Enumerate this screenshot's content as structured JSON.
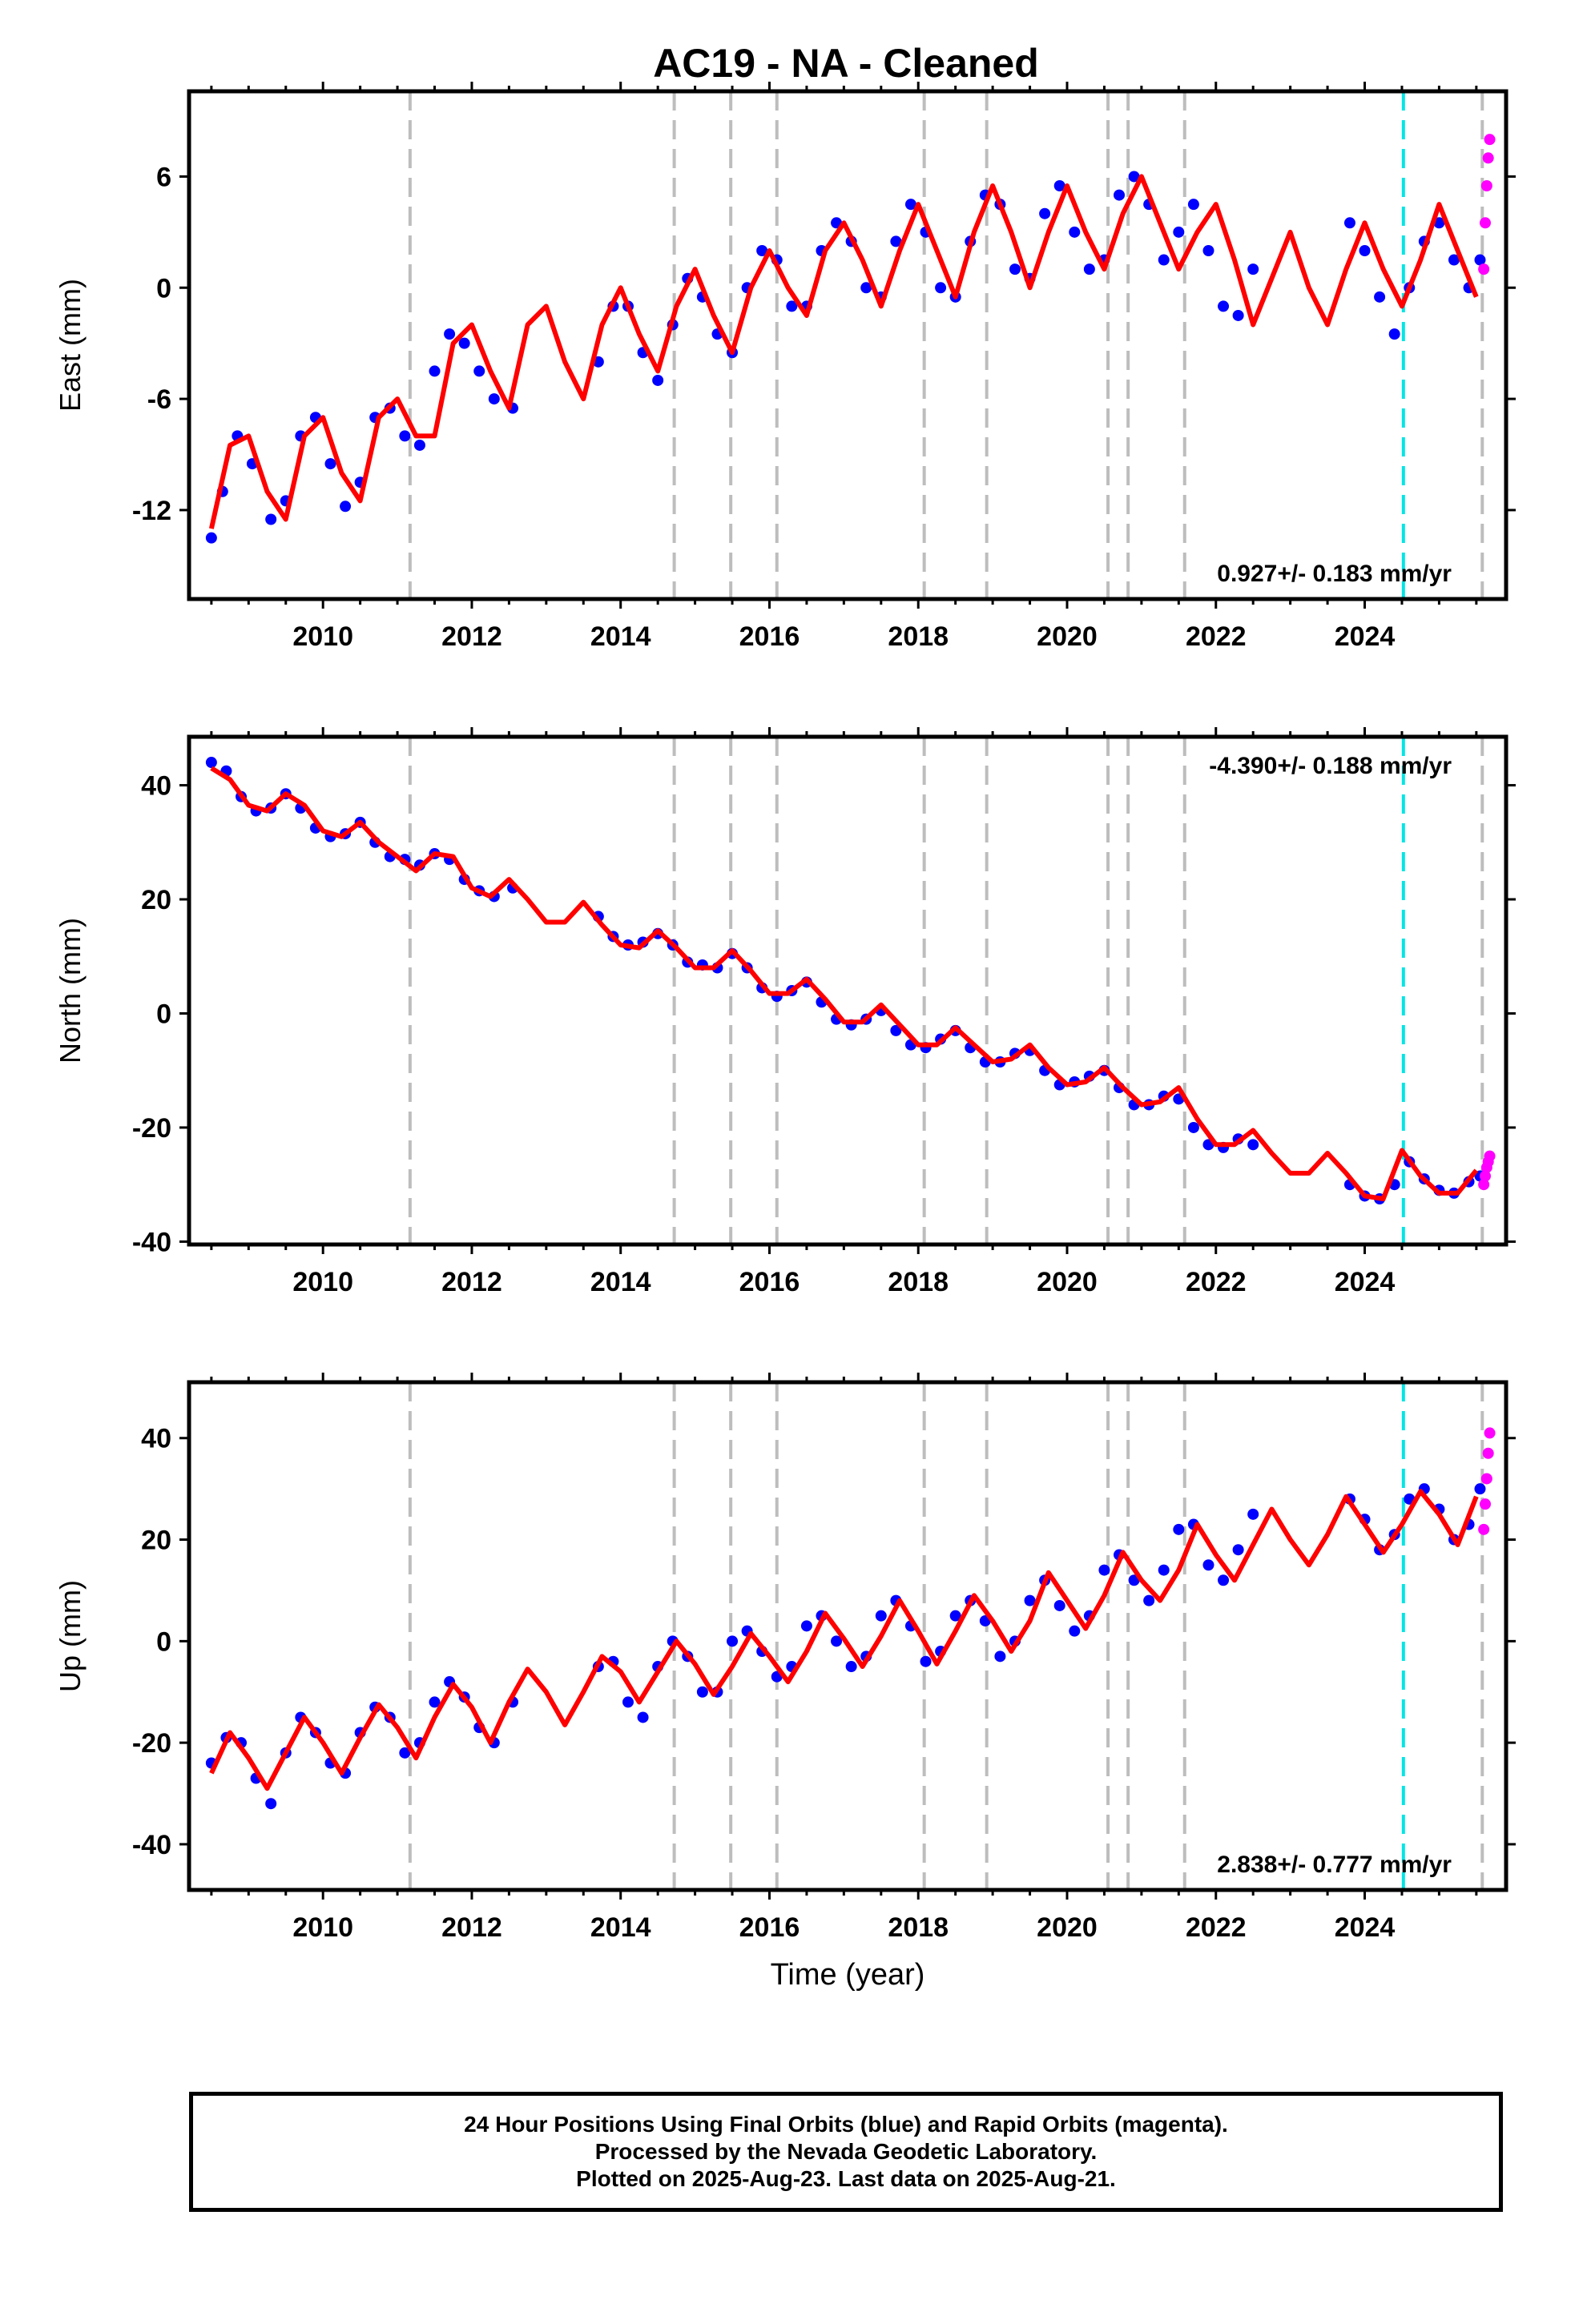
{
  "title": "AC19  - NA - Cleaned",
  "chart_data": [
    {
      "type": "scatter",
      "ylabel": "East (mm)",
      "xlabel": "",
      "xlim": [
        2008.2,
        2025.9
      ],
      "ylim": [
        -16.8,
        10.6
      ],
      "xticks": [
        2010,
        2012,
        2014,
        2016,
        2018,
        2020,
        2022,
        2024
      ],
      "yticks": [
        -12,
        -6,
        0,
        6
      ],
      "rate_label": "0.927+/- 0.183 mm/yr",
      "series": [
        {
          "color": "#0000ff",
          "x": [
            2008.5,
            2008.65,
            2008.85,
            2009.05,
            2009.3,
            2009.5,
            2009.7,
            2009.9,
            2010.1,
            2010.3,
            2010.5,
            2010.7,
            2010.9,
            2011.1,
            2011.3,
            2011.5,
            2011.7,
            2011.9,
            2012.1,
            2012.3,
            2012.55,
            2013.7,
            2013.9,
            2014.1,
            2014.3,
            2014.5,
            2014.7,
            2014.9,
            2015.1,
            2015.3,
            2015.5,
            2015.7,
            2015.9,
            2016.1,
            2016.3,
            2016.5,
            2016.7,
            2016.9,
            2017.1,
            2017.3,
            2017.5,
            2017.7,
            2017.9,
            2018.1,
            2018.3,
            2018.5,
            2018.7,
            2018.9,
            2019.1,
            2019.3,
            2019.5,
            2019.7,
            2019.9,
            2020.1,
            2020.3,
            2020.5,
            2020.7,
            2020.9,
            2021.1,
            2021.3,
            2021.5,
            2021.7,
            2021.9,
            2022.1,
            2022.3,
            2022.5,
            2023.8,
            2024.0,
            2024.2,
            2024.4,
            2024.6,
            2024.8,
            2025.0,
            2025.2,
            2025.4,
            2025.55
          ],
          "y": [
            -13.5,
            -11.0,
            -8.0,
            -9.5,
            -12.5,
            -11.5,
            -8.0,
            -7.0,
            -9.5,
            -11.8,
            -10.5,
            -7.0,
            -6.5,
            -8.0,
            -8.5,
            -4.5,
            -2.5,
            -3.0,
            -4.5,
            -6.0,
            -6.5,
            -4.0,
            -1.0,
            -1.0,
            -3.5,
            -5.0,
            -2.0,
            0.5,
            -0.5,
            -2.5,
            -3.5,
            0.0,
            2.0,
            1.5,
            -1.0,
            -1.0,
            2.0,
            3.5,
            2.5,
            0.0,
            -0.5,
            2.5,
            4.5,
            3.0,
            0.0,
            -0.5,
            2.5,
            5.0,
            4.5,
            1.0,
            0.5,
            4.0,
            5.5,
            3.0,
            1.0,
            1.5,
            5.0,
            6.0,
            4.5,
            1.5,
            3.0,
            4.5,
            2.0,
            -1.0,
            -1.5,
            1.0,
            3.5,
            2.0,
            -0.5,
            -2.5,
            0.0,
            2.5,
            3.5,
            1.5,
            0.0,
            1.5
          ]
        },
        {
          "color": "#ff00ff",
          "x": [
            2025.6,
            2025.62,
            2025.64,
            2025.66,
            2025.68
          ],
          "y": [
            1.0,
            3.5,
            5.5,
            7.0,
            8.0
          ]
        }
      ],
      "model": {
        "color": "#ff0000",
        "x": [
          2008.5,
          2008.75,
          2009.0,
          2009.25,
          2009.5,
          2009.75,
          2010.0,
          2010.25,
          2010.5,
          2010.75,
          2011.0,
          2011.25,
          2011.5,
          2011.75,
          2012.0,
          2012.25,
          2012.5,
          2012.75,
          2013.0,
          2013.25,
          2013.5,
          2013.75,
          2014.0,
          2014.25,
          2014.5,
          2014.75,
          2015.0,
          2015.25,
          2015.5,
          2015.75,
          2016.0,
          2016.25,
          2016.5,
          2016.75,
          2017.0,
          2017.25,
          2017.5,
          2017.75,
          2018.0,
          2018.25,
          2018.5,
          2018.75,
          2019.0,
          2019.25,
          2019.5,
          2019.75,
          2020.0,
          2020.25,
          2020.5,
          2020.75,
          2021.0,
          2021.25,
          2021.5,
          2021.75,
          2022.0,
          2022.25,
          2022.5,
          2022.75,
          2023.0,
          2023.25,
          2023.5,
          2023.75,
          2024.0,
          2024.25,
          2024.5,
          2024.75,
          2025.0,
          2025.25,
          2025.5
        ],
        "y": [
          -13.0,
          -8.5,
          -8.0,
          -11.0,
          -12.5,
          -8.0,
          -7.0,
          -10.0,
          -11.5,
          -7.0,
          -6.0,
          -8.0,
          -8.0,
          -3.0,
          -2.0,
          -4.5,
          -6.5,
          -2.0,
          -1.0,
          -4.0,
          -6.0,
          -2.0,
          0.0,
          -2.5,
          -4.5,
          -1.0,
          1.0,
          -1.5,
          -3.5,
          0.0,
          2.0,
          0.0,
          -1.5,
          2.0,
          3.5,
          1.5,
          -1.0,
          2.0,
          4.5,
          2.0,
          -0.5,
          3.0,
          5.5,
          3.0,
          0.0,
          3.0,
          5.5,
          3.0,
          1.0,
          4.0,
          6.0,
          3.5,
          1.0,
          3.0,
          4.5,
          1.5,
          -2.0,
          0.5,
          3.0,
          0.0,
          -2.0,
          1.0,
          3.5,
          1.0,
          -1.0,
          1.5,
          4.5,
          2.0,
          -0.5
        ]
      },
      "grey_lines": [
        2011.17,
        2014.72,
        2015.48,
        2016.1,
        2018.08,
        2018.92,
        2020.55,
        2020.82,
        2021.58,
        2025.58
      ],
      "cyan_lines": [
        2024.52
      ]
    },
    {
      "type": "scatter",
      "ylabel": "North (mm)",
      "xlabel": "",
      "xlim": [
        2008.2,
        2025.9
      ],
      "ylim": [
        -40.5,
        48.5
      ],
      "xticks": [
        2010,
        2012,
        2014,
        2016,
        2018,
        2020,
        2022,
        2024
      ],
      "yticks": [
        -40,
        -20,
        0,
        20,
        40
      ],
      "rate_label": "-4.390+/- 0.188 mm/yr",
      "series": [
        {
          "color": "#0000ff",
          "x": [
            2008.5,
            2008.7,
            2008.9,
            2009.1,
            2009.3,
            2009.5,
            2009.7,
            2009.9,
            2010.1,
            2010.3,
            2010.5,
            2010.7,
            2010.9,
            2011.1,
            2011.3,
            2011.5,
            2011.7,
            2011.9,
            2012.1,
            2012.3,
            2012.55,
            2013.7,
            2013.9,
            2014.1,
            2014.3,
            2014.5,
            2014.7,
            2014.9,
            2015.1,
            2015.3,
            2015.5,
            2015.7,
            2015.9,
            2016.1,
            2016.3,
            2016.5,
            2016.7,
            2016.9,
            2017.1,
            2017.3,
            2017.5,
            2017.7,
            2017.9,
            2018.1,
            2018.3,
            2018.5,
            2018.7,
            2018.9,
            2019.1,
            2019.3,
            2019.5,
            2019.7,
            2019.9,
            2020.1,
            2020.3,
            2020.5,
            2020.7,
            2020.9,
            2021.1,
            2021.3,
            2021.5,
            2021.7,
            2021.9,
            2022.1,
            2022.3,
            2022.5,
            2023.8,
            2024.0,
            2024.2,
            2024.4,
            2024.6,
            2024.8,
            2025.0,
            2025.2,
            2025.4,
            2025.55
          ],
          "y": [
            44.0,
            42.5,
            38.0,
            35.5,
            36.0,
            38.5,
            36.0,
            32.5,
            31.0,
            31.5,
            33.5,
            30.0,
            27.5,
            27.0,
            26.0,
            28.0,
            27.0,
            23.5,
            21.5,
            20.5,
            22.0,
            17.0,
            13.5,
            12.0,
            12.5,
            14.0,
            12.0,
            9.0,
            8.5,
            8.0,
            10.5,
            8.0,
            4.5,
            3.0,
            4.0,
            5.5,
            2.0,
            -1.0,
            -2.0,
            -1.0,
            0.5,
            -3.0,
            -5.5,
            -6.0,
            -4.5,
            -3.0,
            -6.0,
            -8.5,
            -8.5,
            -7.0,
            -6.5,
            -10.0,
            -12.5,
            -12.0,
            -11.0,
            -10.0,
            -13.0,
            -16.0,
            -16.0,
            -14.5,
            -15.0,
            -20.0,
            -23.0,
            -23.5,
            -22.0,
            -23.0,
            -30.0,
            -32.0,
            -32.5,
            -30.0,
            -26.0,
            -29.0,
            -31.0,
            -31.5,
            -29.5,
            -28.5
          ]
        },
        {
          "color": "#ff00ff",
          "x": [
            2025.6,
            2025.62,
            2025.64,
            2025.66,
            2025.68
          ],
          "y": [
            -30.0,
            -28.5,
            -27.0,
            -26.0,
            -25.0
          ]
        }
      ],
      "model": {
        "color": "#ff0000",
        "x": [
          2008.5,
          2008.75,
          2009.0,
          2009.25,
          2009.5,
          2009.75,
          2010.0,
          2010.25,
          2010.5,
          2010.75,
          2011.0,
          2011.25,
          2011.5,
          2011.75,
          2012.0,
          2012.25,
          2012.5,
          2012.75,
          2013.0,
          2013.25,
          2013.5,
          2013.75,
          2014.0,
          2014.25,
          2014.5,
          2014.75,
          2015.0,
          2015.25,
          2015.5,
          2015.75,
          2016.0,
          2016.25,
          2016.5,
          2016.75,
          2017.0,
          2017.25,
          2017.5,
          2017.75,
          2018.0,
          2018.25,
          2018.5,
          2018.75,
          2019.0,
          2019.25,
          2019.5,
          2019.75,
          2020.0,
          2020.25,
          2020.5,
          2020.75,
          2021.0,
          2021.25,
          2021.5,
          2021.75,
          2022.0,
          2022.25,
          2022.5,
          2022.75,
          2023.0,
          2023.25,
          2023.5,
          2023.75,
          2024.0,
          2024.25,
          2024.5,
          2024.75,
          2025.0,
          2025.25,
          2025.5
        ],
        "y": [
          43.0,
          41.0,
          36.5,
          35.5,
          38.5,
          36.5,
          32.0,
          31.0,
          33.5,
          30.0,
          27.5,
          25.0,
          28.0,
          27.5,
          22.0,
          20.5,
          23.5,
          20.0,
          16.0,
          16.0,
          19.5,
          15.5,
          12.0,
          11.5,
          14.5,
          11.5,
          8.0,
          8.0,
          11.0,
          7.5,
          3.5,
          3.5,
          6.0,
          2.5,
          -1.5,
          -1.5,
          1.5,
          -2.0,
          -5.5,
          -5.5,
          -2.5,
          -5.5,
          -8.5,
          -8.0,
          -5.5,
          -9.5,
          -12.5,
          -12.0,
          -9.5,
          -13.0,
          -16.0,
          -15.5,
          -13.0,
          -18.5,
          -23.0,
          -23.0,
          -20.5,
          -24.5,
          -28.0,
          -28.0,
          -24.5,
          -28.0,
          -32.0,
          -32.5,
          -24.0,
          -28.5,
          -31.5,
          -31.5,
          -27.5
        ]
      },
      "grey_lines": [
        2011.17,
        2014.72,
        2015.48,
        2016.1,
        2018.08,
        2018.92,
        2020.55,
        2020.82,
        2021.58,
        2025.58
      ],
      "cyan_lines": [
        2024.52
      ]
    },
    {
      "type": "scatter",
      "ylabel": "Up (mm)",
      "xlabel": "Time (year)",
      "xlim": [
        2008.2,
        2025.9
      ],
      "ylim": [
        -49.0,
        51.0
      ],
      "xticks": [
        2010,
        2012,
        2014,
        2016,
        2018,
        2020,
        2022,
        2024
      ],
      "yticks": [
        -40,
        -20,
        0,
        20,
        40
      ],
      "rate_label": "2.838+/- 0.777 mm/yr",
      "series": [
        {
          "color": "#0000ff",
          "x": [
            2008.5,
            2008.7,
            2008.9,
            2009.1,
            2009.3,
            2009.5,
            2009.7,
            2009.9,
            2010.1,
            2010.3,
            2010.5,
            2010.7,
            2010.9,
            2011.1,
            2011.3,
            2011.5,
            2011.7,
            2011.9,
            2012.1,
            2012.3,
            2012.55,
            2013.7,
            2013.9,
            2014.1,
            2014.3,
            2014.5,
            2014.7,
            2014.9,
            2015.1,
            2015.3,
            2015.5,
            2015.7,
            2015.9,
            2016.1,
            2016.3,
            2016.5,
            2016.7,
            2016.9,
            2017.1,
            2017.3,
            2017.5,
            2017.7,
            2017.9,
            2018.1,
            2018.3,
            2018.5,
            2018.7,
            2018.9,
            2019.1,
            2019.3,
            2019.5,
            2019.7,
            2019.9,
            2020.1,
            2020.3,
            2020.5,
            2020.7,
            2020.9,
            2021.1,
            2021.3,
            2021.5,
            2021.7,
            2021.9,
            2022.1,
            2022.3,
            2022.5,
            2023.8,
            2024.0,
            2024.2,
            2024.4,
            2024.6,
            2024.8,
            2025.0,
            2025.2,
            2025.4,
            2025.55
          ],
          "y": [
            -24.0,
            -19.0,
            -20.0,
            -27.0,
            -32.0,
            -22.0,
            -15.0,
            -18.0,
            -24.0,
            -26.0,
            -18.0,
            -13.0,
            -15.0,
            -22.0,
            -20.0,
            -12.0,
            -8.0,
            -11.0,
            -17.0,
            -20.0,
            -12.0,
            -5.0,
            -4.0,
            -12.0,
            -15.0,
            -5.0,
            0.0,
            -3.0,
            -10.0,
            -10.0,
            0.0,
            2.0,
            -2.0,
            -7.0,
            -5.0,
            3.0,
            5.0,
            0.0,
            -5.0,
            -3.0,
            5.0,
            8.0,
            3.0,
            -4.0,
            -2.0,
            5.0,
            8.0,
            4.0,
            -3.0,
            0.0,
            8.0,
            12.0,
            7.0,
            2.0,
            5.0,
            14.0,
            17.0,
            12.0,
            8.0,
            14.0,
            22.0,
            23.0,
            15.0,
            12.0,
            18.0,
            25.0,
            28.0,
            24.0,
            18.0,
            21.0,
            28.0,
            30.0,
            26.0,
            20.0,
            23.0,
            30.0
          ]
        },
        {
          "color": "#ff00ff",
          "x": [
            2025.6,
            2025.62,
            2025.64,
            2025.66,
            2025.68
          ],
          "y": [
            22.0,
            27.0,
            32.0,
            37.0,
            41.0
          ]
        }
      ],
      "model": {
        "color": "#ff0000",
        "x": [
          2008.5,
          2008.75,
          2009.0,
          2009.25,
          2009.5,
          2009.75,
          2010.0,
          2010.25,
          2010.5,
          2010.75,
          2011.0,
          2011.25,
          2011.5,
          2011.75,
          2012.0,
          2012.25,
          2012.5,
          2012.75,
          2013.0,
          2013.25,
          2013.5,
          2013.75,
          2014.0,
          2014.25,
          2014.5,
          2014.75,
          2015.0,
          2015.25,
          2015.5,
          2015.75,
          2016.0,
          2016.25,
          2016.5,
          2016.75,
          2017.0,
          2017.25,
          2017.5,
          2017.75,
          2018.0,
          2018.25,
          2018.5,
          2018.75,
          2019.0,
          2019.25,
          2019.5,
          2019.75,
          2020.0,
          2020.25,
          2020.5,
          2020.75,
          2021.0,
          2021.25,
          2021.5,
          2021.75,
          2022.0,
          2022.25,
          2022.5,
          2022.75,
          2023.0,
          2023.25,
          2023.5,
          2023.75,
          2024.0,
          2024.25,
          2024.5,
          2024.75,
          2025.0,
          2025.25,
          2025.5
        ],
        "y": [
          -26.0,
          -18.0,
          -23.0,
          -29.0,
          -22.0,
          -15.0,
          -20.0,
          -26.0,
          -19.0,
          -12.5,
          -17.0,
          -23.0,
          -15.0,
          -8.5,
          -13.0,
          -20.0,
          -12.0,
          -5.5,
          -10.0,
          -16.5,
          -10.0,
          -3.0,
          -6.0,
          -12.0,
          -6.0,
          0.0,
          -4.5,
          -10.5,
          -5.0,
          1.5,
          -3.0,
          -8.0,
          -2.0,
          5.5,
          0.5,
          -5.0,
          1.0,
          8.0,
          2.0,
          -4.5,
          2.0,
          9.0,
          4.0,
          -2.0,
          4.0,
          13.5,
          8.0,
          2.5,
          9.0,
          17.5,
          12.0,
          8.0,
          14.0,
          23.0,
          17.0,
          12.0,
          19.0,
          26.0,
          20.0,
          15.0,
          21.0,
          28.5,
          23.0,
          17.5,
          23.0,
          29.5,
          25.0,
          19.0,
          28.5
        ]
      },
      "grey_lines": [
        2011.17,
        2014.72,
        2015.48,
        2016.1,
        2018.08,
        2018.92,
        2020.55,
        2020.82,
        2021.58,
        2025.58
      ],
      "cyan_lines": [
        2024.52
      ]
    }
  ],
  "footer": {
    "line1": "24 Hour Positions Using Final Orbits (blue) and Rapid Orbits (magenta).",
    "line2": "Processed by the Nevada Geodetic Laboratory.",
    "line3": "Plotted on 2025-Aug-23. Last data on 2025-Aug-21."
  }
}
